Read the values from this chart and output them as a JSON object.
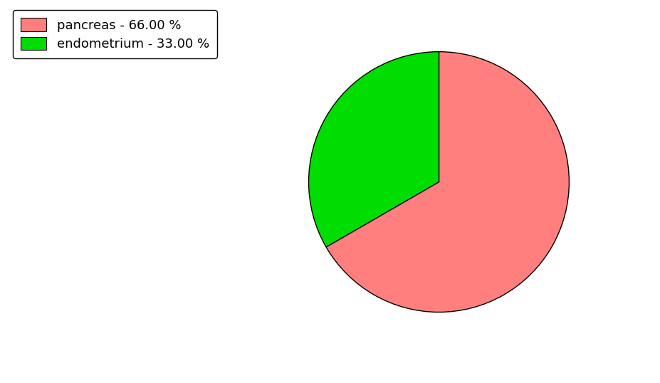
{
  "slices": [
    {
      "label": "pancreas - 66.00 %",
      "value": 66.0,
      "color": "#FF7F7F"
    },
    {
      "label": "endometrium - 33.00 %",
      "value": 33.0,
      "color": "#00DD00"
    }
  ],
  "background_color": "#ffffff",
  "legend_fontsize": 13,
  "startangle": 90,
  "counterclock": false
}
